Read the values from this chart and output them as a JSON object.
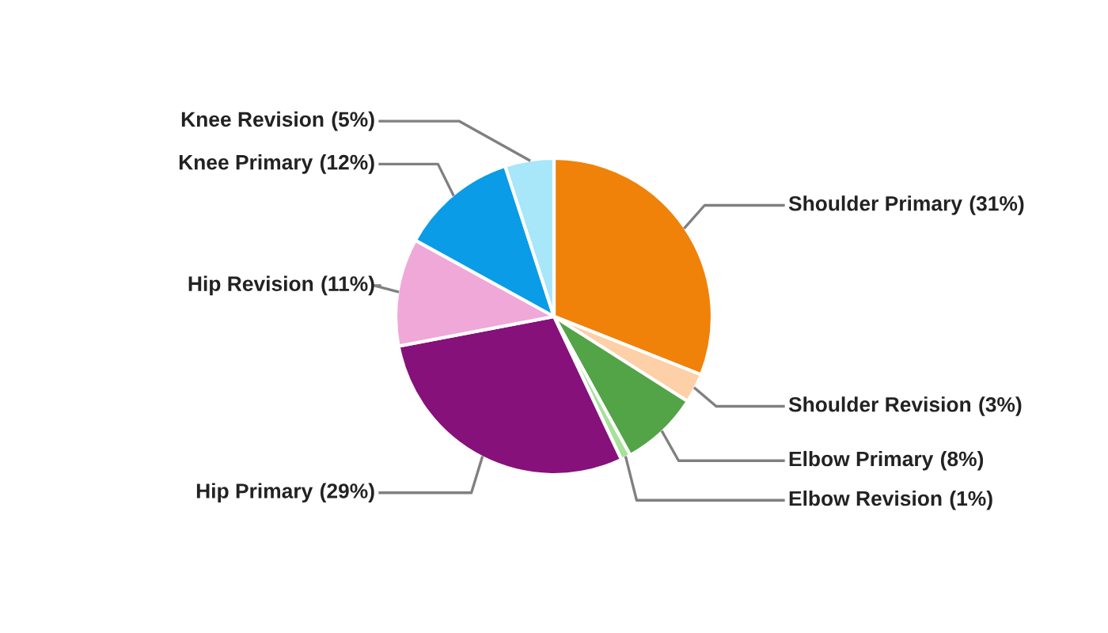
{
  "chart_data": {
    "type": "pie",
    "categories": [
      "Shoulder Primary",
      "Shoulder Revision",
      "Elbow Primary",
      "Elbow Revision",
      "Hip Primary",
      "Hip Revision",
      "Knee Primary",
      "Knee Revision"
    ],
    "values": [
      31,
      3,
      8,
      1,
      29,
      11,
      12,
      5
    ],
    "colors": [
      "#f0820a",
      "#fdd0a8",
      "#52a447",
      "#a8e09c",
      "#86117a",
      "#f0a8d8",
      "#0a9ce6",
      "#a8e6fa"
    ],
    "value_labels": [
      "(31%)",
      "(3%)",
      "(8%)",
      "(1%)",
      "(29%)",
      "(11%)",
      "(12%)",
      "(5%)"
    ]
  }
}
